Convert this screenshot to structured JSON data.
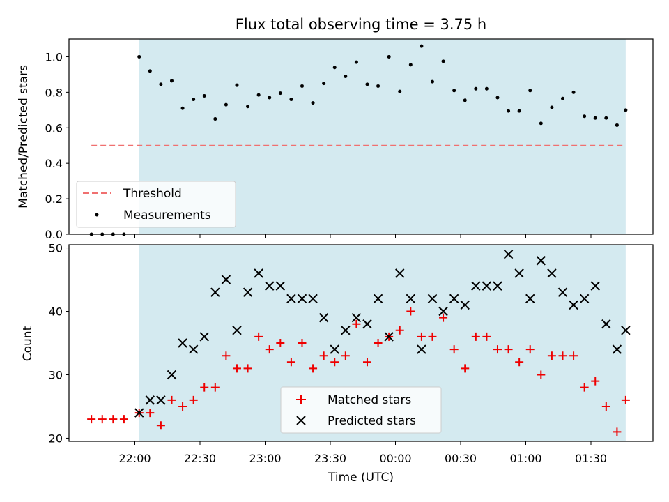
{
  "figure": {
    "title": "Flux total observing time = 3.75 h",
    "shaded_interval": {
      "start": "22:02",
      "end": "01:46"
    },
    "colors": {
      "shade": "#d4eaf0",
      "threshold": "#f07070",
      "measurements": "#000000",
      "matched": "#ee0000",
      "predicted": "#000000"
    }
  },
  "chart_data": [
    {
      "type": "scatter",
      "ylabel": "Matched/Predicted stars",
      "ylim": [
        0,
        1.1
      ],
      "yticks": [
        "0.0",
        "0.2",
        "0.4",
        "0.6",
        "0.8",
        "1.0"
      ],
      "grid": false,
      "legend_position": "lower-left",
      "threshold": {
        "name": "Threshold",
        "value": 0.5,
        "x_start": "21:40",
        "x_end": "01:45"
      },
      "series": [
        {
          "name": "Measurements",
          "x": [
            "21:40",
            "21:45",
            "21:50",
            "21:55",
            "22:02",
            "22:07",
            "22:12",
            "22:17",
            "22:22",
            "22:27",
            "22:32",
            "22:37",
            "22:42",
            "22:47",
            "22:52",
            "22:57",
            "23:02",
            "23:07",
            "23:12",
            "23:17",
            "23:22",
            "23:27",
            "23:32",
            "23:37",
            "23:42",
            "23:47",
            "23:52",
            "23:57",
            "00:02",
            "00:07",
            "00:12",
            "00:17",
            "00:22",
            "00:27",
            "00:32",
            "00:37",
            "00:42",
            "00:47",
            "00:52",
            "00:57",
            "01:02",
            "01:07",
            "01:12",
            "01:17",
            "01:22",
            "01:27",
            "01:32",
            "01:37",
            "01:42",
            "01:46"
          ],
          "y": [
            0.0,
            0.0,
            0.0,
            0.0,
            1.0,
            0.92,
            0.845,
            0.865,
            0.71,
            0.76,
            0.78,
            0.65,
            0.73,
            0.84,
            0.72,
            0.785,
            0.77,
            0.795,
            0.76,
            0.835,
            0.74,
            0.85,
            0.94,
            0.89,
            0.97,
            0.845,
            0.835,
            1.0,
            0.805,
            0.955,
            1.06,
            0.86,
            0.975,
            0.81,
            0.755,
            0.82,
            0.82,
            0.77,
            0.695,
            0.695,
            0.81,
            0.625,
            0.715,
            0.765,
            0.8,
            0.665,
            0.655,
            0.655,
            0.615,
            0.7
          ]
        }
      ]
    },
    {
      "type": "scatter",
      "ylabel": "Count",
      "xlabel": "Time (UTC)",
      "ylim": [
        19.5,
        50.5
      ],
      "yticks": [
        "20",
        "30",
        "40",
        "50"
      ],
      "xticks": [
        "22:00",
        "22:30",
        "23:00",
        "23:30",
        "00:00",
        "00:30",
        "01:00",
        "01:30"
      ],
      "grid": false,
      "legend_position": "lower-center",
      "series": [
        {
          "name": "Matched stars",
          "marker": "+",
          "x": [
            "21:40",
            "21:45",
            "21:50",
            "21:55",
            "22:02",
            "22:07",
            "22:12",
            "22:17",
            "22:22",
            "22:27",
            "22:32",
            "22:37",
            "22:42",
            "22:47",
            "22:52",
            "22:57",
            "23:02",
            "23:07",
            "23:12",
            "23:17",
            "23:22",
            "23:27",
            "23:32",
            "23:37",
            "23:42",
            "23:47",
            "23:52",
            "23:57",
            "00:02",
            "00:07",
            "00:12",
            "00:17",
            "00:22",
            "00:27",
            "00:32",
            "00:37",
            "00:42",
            "00:47",
            "00:52",
            "00:57",
            "01:02",
            "01:07",
            "01:12",
            "01:17",
            "01:22",
            "01:27",
            "01:32",
            "01:37",
            "01:42",
            "01:46"
          ],
          "y": [
            23,
            23,
            23,
            23,
            24,
            24,
            22,
            26,
            25,
            26,
            28,
            28,
            33,
            31,
            31,
            36,
            34,
            35,
            32,
            35,
            31,
            33,
            32,
            33,
            38,
            32,
            35,
            36,
            37,
            40,
            36,
            36,
            39,
            34,
            31,
            36,
            36,
            34,
            34,
            32,
            34,
            30,
            33,
            33,
            33,
            28,
            29,
            25,
            21,
            26
          ]
        },
        {
          "name": "Predicted stars",
          "marker": "x",
          "x": [
            "22:02",
            "22:07",
            "22:12",
            "22:17",
            "22:22",
            "22:27",
            "22:32",
            "22:37",
            "22:42",
            "22:47",
            "22:52",
            "22:57",
            "23:02",
            "23:07",
            "23:12",
            "23:17",
            "23:22",
            "23:27",
            "23:32",
            "23:37",
            "23:42",
            "23:47",
            "23:52",
            "23:57",
            "00:02",
            "00:07",
            "00:12",
            "00:17",
            "00:22",
            "00:27",
            "00:32",
            "00:37",
            "00:42",
            "00:47",
            "00:52",
            "00:57",
            "01:02",
            "01:07",
            "01:12",
            "01:17",
            "01:22",
            "01:27",
            "01:32",
            "01:37",
            "01:42",
            "01:46"
          ],
          "y": [
            24,
            26,
            26,
            30,
            35,
            34,
            36,
            43,
            45,
            37,
            43,
            46,
            44,
            44,
            42,
            42,
            42,
            39,
            34,
            37,
            39,
            38,
            42,
            36,
            46,
            42,
            34,
            42,
            40,
            42,
            41,
            44,
            44,
            44,
            49,
            46,
            42,
            48,
            46,
            43,
            41,
            42,
            44,
            38,
            34,
            37
          ]
        }
      ]
    }
  ]
}
